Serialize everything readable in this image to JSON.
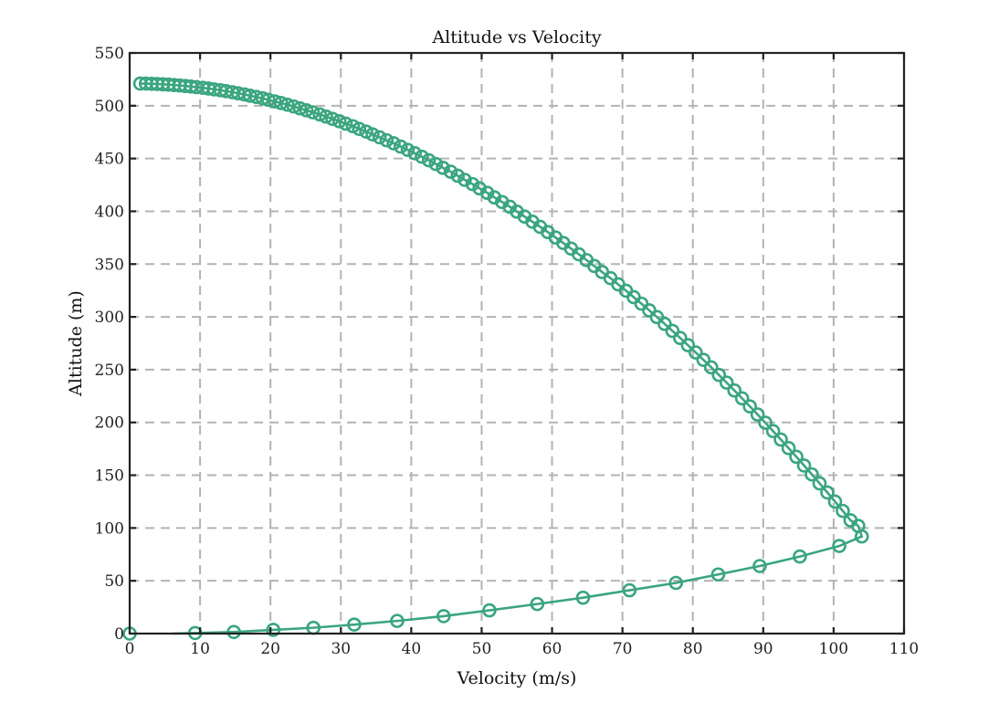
{
  "chart_data": {
    "type": "line",
    "title": "Altitude vs Velocity",
    "xlabel": "Velocity (m/s)",
    "ylabel": "Altitude (m)",
    "xlim": [
      0,
      110
    ],
    "ylim": [
      0,
      550
    ],
    "xticks": [
      0,
      10,
      20,
      30,
      40,
      50,
      60,
      70,
      80,
      90,
      100,
      110
    ],
    "yticks": [
      0,
      50,
      100,
      150,
      200,
      250,
      300,
      350,
      400,
      450,
      500,
      550
    ],
    "xtick_labels": [
      "0",
      "10",
      "20",
      "30",
      "40",
      "50",
      "60",
      "70",
      "80",
      "90",
      "100",
      "110"
    ],
    "ytick_labels": [
      "0",
      "50",
      "100",
      "150",
      "200",
      "250",
      "300",
      "350",
      "400",
      "450",
      "500",
      "550"
    ],
    "grid": true,
    "color": "#3aa57f",
    "series": [
      {
        "marker": "circle",
        "descent": {
          "x": [
            1.5,
            2.3,
            3.1,
            3.9,
            4.7,
            5.5,
            6.3,
            7.1,
            7.9,
            8.7,
            9.5,
            10.4,
            11.2,
            12.0,
            12.9,
            13.7,
            14.6,
            15.4,
            16.3,
            17.1,
            18.0,
            18.9,
            19.7,
            20.6,
            21.5,
            22.4,
            23.3,
            24.2,
            25.1,
            26.0,
            27.0,
            27.9,
            28.8,
            29.8,
            30.7,
            31.7,
            32.6,
            33.6,
            34.5,
            35.5,
            36.5,
            37.5,
            38.5,
            39.5,
            40.5,
            41.5,
            42.5,
            43.5,
            44.5,
            45.6,
            46.6,
            47.6,
            48.7,
            49.7,
            50.8,
            51.8,
            52.9,
            54.0,
            55.0,
            56.1,
            57.2,
            58.3,
            59.4,
            60.5,
            61.6,
            62.7,
            63.8,
            64.9,
            66.0,
            67.1,
            68.3,
            69.4,
            70.5,
            71.6,
            72.7,
            73.8,
            74.9,
            76.0,
            77.1,
            78.2,
            79.3,
            80.4,
            81.5,
            82.6,
            83.7,
            84.8,
            85.9,
            87.0,
            88.1,
            89.2,
            90.3,
            91.4,
            92.5,
            93.6,
            94.7,
            95.8,
            96.9,
            98.0,
            99.1,
            100.2,
            101.3,
            102.4,
            103.5
          ],
          "y": [
            521,
            521,
            520.8,
            520.6,
            520.3,
            520.0,
            519.6,
            519.2,
            518.7,
            518.2,
            517.6,
            517.0,
            516.3,
            515.5,
            514.7,
            513.8,
            512.8,
            511.8,
            510.7,
            509.5,
            508.3,
            507.0,
            505.6,
            504.1,
            502.6,
            501.0,
            499.3,
            497.5,
            495.7,
            493.8,
            491.8,
            489.7,
            487.6,
            485.3,
            483.0,
            480.6,
            478.1,
            475.5,
            472.9,
            470.1,
            467.3,
            464.4,
            461.3,
            458.2,
            455.0,
            451.7,
            448.3,
            444.8,
            441.2,
            437.5,
            433.7,
            429.8,
            425.8,
            421.7,
            417.5,
            413.2,
            408.8,
            404.3,
            399.7,
            395.0,
            390.2,
            385.3,
            380.3,
            375.2,
            370.0,
            364.7,
            359.3,
            353.8,
            348.2,
            342.5,
            336.7,
            330.8,
            324.8,
            318.7,
            312.5,
            306.2,
            299.8,
            293.3,
            286.7,
            280.0,
            273.2,
            266.3,
            259.3,
            252.2,
            245.0,
            237.7,
            230.3,
            222.8,
            215.2,
            207.5,
            199.7,
            191.8,
            183.8,
            175.7,
            167.5,
            159.2,
            150.8,
            142.3,
            133.7,
            125.0,
            116.2,
            107.3,
            102.0
          ]
        },
        "ascent_markers": {
          "x": [
            0.0,
            9.3,
            14.8,
            20.4,
            26.1,
            31.9,
            38.0,
            44.6,
            51.1,
            57.9,
            64.4,
            71.0,
            77.6,
            83.6,
            89.5,
            95.2,
            100.8,
            104.0
          ],
          "y": [
            0,
            0.5,
            1.5,
            3.5,
            5.5,
            8.5,
            12.0,
            16.5,
            22.0,
            28.0,
            34.0,
            41.0,
            48.0,
            56.0,
            64.0,
            73.0,
            83.0,
            92.0
          ]
        },
        "ascent_line": {
          "x": [
            6.0,
            9.3,
            14.8,
            20.4,
            26.1,
            31.9,
            38.0,
            44.6,
            51.1,
            57.9,
            64.4,
            71.0,
            77.6,
            83.6,
            89.5,
            95.2,
            100.8,
            104.0
          ],
          "y": [
            0,
            0.5,
            1.5,
            3.5,
            5.5,
            8.5,
            12.0,
            16.5,
            22.0,
            28.0,
            34.0,
            41.0,
            48.0,
            56.0,
            64.0,
            73.0,
            83.0,
            92.0
          ]
        }
      }
    ]
  }
}
